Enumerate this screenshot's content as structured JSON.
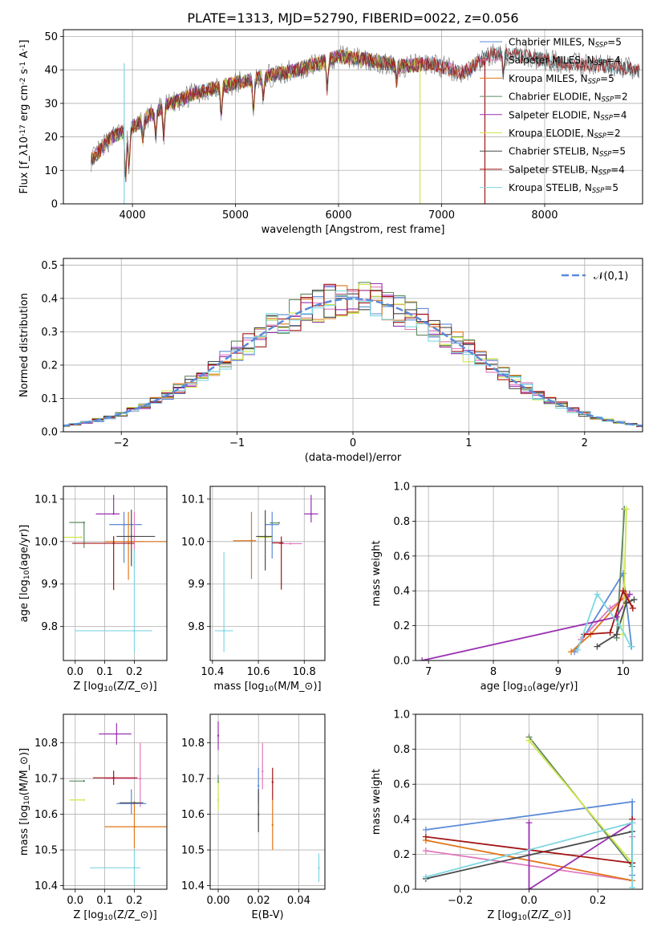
{
  "figure_title": "PLATE=1313, MJD=52790, FIBERID=0022, z=0.056",
  "colors": {
    "Chabrier MILES": "#5b8ad8",
    "Salpeter MILES": "#e079bd",
    "Kroupa MILES": "#e0761b",
    "Chabrier ELODIE": "#5f8a5f",
    "Salpeter ELODIE": "#9a31b0",
    "Kroupa ELODIE": "#cfe64a",
    "Chabrier STELIB": "#4a4a4a",
    "Salpeter STELIB": "#a31515",
    "Kroupa STELIB": "#7fd6e0",
    "data": "#777777",
    "normal": "#5b8ad8"
  },
  "chart_data": [
    {
      "id": "spectrum",
      "type": "line",
      "xlabel": "wavelength [Angstrom, rest frame]",
      "ylabel": "Flux [f$_\\lambda$10$^{-17}$ erg cm$^{-2}$ s$^{-1}$ A$^{-1}$]",
      "xlim": [
        3330,
        8950
      ],
      "ylim": [
        0,
        52
      ],
      "xticks": [
        4000,
        5000,
        6000,
        7000,
        8000
      ],
      "yticks": [
        0,
        10,
        20,
        30,
        40,
        50
      ],
      "legend_position": "right",
      "legend": [
        {
          "label": "Chabrier MILES",
          "nssp": "5"
        },
        {
          "label": "Salpeter MILES",
          "nssp": "4"
        },
        {
          "label": "Kroupa MILES",
          "nssp": "5"
        },
        {
          "label": "Chabrier ELODIE",
          "nssp": "2"
        },
        {
          "label": "Salpeter ELODIE",
          "nssp": "4"
        },
        {
          "label": "Kroupa ELODIE",
          "nssp": "2"
        },
        {
          "label": "Chabrier STELIB",
          "nssp": "5"
        },
        {
          "label": "Salpeter STELIB",
          "nssp": "4"
        },
        {
          "label": "Kroupa STELIB",
          "nssp": "5"
        }
      ],
      "continuum": {
        "x": [
          3600,
          3800,
          4000,
          4300,
          4600,
          5000,
          5300,
          5600,
          6000,
          6300,
          6600,
          6900,
          7200,
          7500,
          7800,
          8200,
          8700,
          8900
        ],
        "y": [
          13,
          20,
          23,
          29,
          33,
          36,
          38,
          40,
          44,
          43,
          41,
          42,
          39,
          45,
          44,
          42,
          41,
          40
        ]
      }
    },
    {
      "id": "residuals",
      "type": "line",
      "xlabel": "(data-model)/error",
      "ylabel": "Normed distribution",
      "xlim": [
        -2.5,
        2.5
      ],
      "ylim": [
        0,
        0.52
      ],
      "xticks": [
        -2,
        -1,
        0,
        1,
        2
      ],
      "yticks": [
        0.0,
        0.1,
        0.2,
        0.3,
        0.4,
        0.5
      ],
      "legend_position": "top-right",
      "legend_label": "$\\mathcal{N}(0,1)$",
      "bin_width": 0.1
    },
    {
      "id": "age-vs-Z",
      "type": "scatter",
      "xlabel": "Z [log$_{10}(Z/Z_\\odot)$]",
      "ylabel": "age  [log$_{10}(age/yr)$]",
      "xlim": [
        -0.04,
        0.31
      ],
      "ylim": [
        9.72,
        10.13
      ],
      "xticks": [
        0.0,
        0.1,
        0.2
      ],
      "yticks": [
        9.8,
        9.9,
        10.0,
        10.1
      ],
      "points": [
        {
          "model": "Chabrier MILES",
          "x": 0.165,
          "y": 10.04,
          "xerr": [
            0.05,
            0.06
          ],
          "yerr": [
            0.09,
            0.03
          ]
        },
        {
          "model": "Salpeter MILES",
          "x": 0.2,
          "y": 10.0,
          "xerr": [
            0.04,
            0.03
          ],
          "yerr": [
            0.06,
            0.07
          ]
        },
        {
          "model": "Kroupa MILES",
          "x": 0.18,
          "y": 10.0,
          "xerr": [
            0.08,
            0.13
          ],
          "yerr": [
            0.09,
            0.07
          ]
        },
        {
          "model": "Chabrier ELODIE",
          "x": 0.03,
          "y": 10.045,
          "xerr": [
            0.05,
            0.0
          ],
          "yerr": [
            0.06,
            0.0
          ]
        },
        {
          "model": "Salpeter ELODIE",
          "x": 0.13,
          "y": 10.065,
          "xerr": [
            0.06,
            0.02
          ],
          "yerr": [
            0.0,
            0.045
          ]
        },
        {
          "model": "Kroupa ELODIE",
          "x": 0.02,
          "y": 10.01,
          "xerr": [
            0.06,
            0.0
          ],
          "yerr": [
            0.0,
            0.0
          ]
        },
        {
          "model": "Chabrier STELIB",
          "x": 0.19,
          "y": 10.012,
          "xerr": [
            0.05,
            0.08
          ],
          "yerr": [
            0.07,
            0.063
          ]
        },
        {
          "model": "Salpeter STELIB",
          "x": 0.13,
          "y": 9.996,
          "xerr": [
            0.14,
            0.07
          ],
          "yerr": [
            0.11,
            0.017
          ]
        },
        {
          "model": "Kroupa STELIB",
          "x": 0.2,
          "y": 9.79,
          "xerr": [
            0.2,
            0.06
          ],
          "yerr": [
            0.05,
            0.19
          ]
        }
      ]
    },
    {
      "id": "age-vs-mass",
      "type": "scatter",
      "xlabel": "mass [log$_{10}(M/M_\\odot)$]",
      "ylabel": "",
      "xlim": [
        10.39,
        10.89
      ],
      "ylim": [
        9.72,
        10.13
      ],
      "xticks": [
        10.4,
        10.6,
        10.8
      ],
      "yticks": [
        9.8,
        9.9,
        10.0,
        10.1
      ],
      "points": [
        {
          "model": "Chabrier MILES",
          "x": 10.66,
          "y": 10.04,
          "xerr": [
            0.03,
            0.03
          ],
          "yerr": [
            0.08,
            0.03
          ]
        },
        {
          "model": "Salpeter MILES",
          "x": 10.74,
          "y": 9.995,
          "xerr": [
            0.05,
            0.05
          ],
          "yerr": [
            0.0,
            0.0
          ]
        },
        {
          "model": "Kroupa MILES",
          "x": 10.57,
          "y": 10.002,
          "xerr": [
            0.08,
            0.02
          ],
          "yerr": [
            0.09,
            0.068
          ]
        },
        {
          "model": "Chabrier ELODIE",
          "x": 10.69,
          "y": 10.044,
          "xerr": [
            0.04,
            0.0
          ],
          "yerr": [
            0.0,
            0.0
          ]
        },
        {
          "model": "Salpeter ELODIE",
          "x": 10.83,
          "y": 10.065,
          "xerr": [
            0.03,
            0.03
          ],
          "yerr": [
            0.02,
            0.045
          ]
        },
        {
          "model": "Kroupa ELODIE",
          "x": 10.64,
          "y": 10.01,
          "xerr": [
            0.04,
            0.02
          ],
          "yerr": [
            0.0,
            0.0
          ]
        },
        {
          "model": "Chabrier STELIB",
          "x": 10.63,
          "y": 10.012,
          "xerr": [
            0.04,
            0.03
          ],
          "yerr": [
            0.08,
            0.062
          ]
        },
        {
          "model": "Salpeter STELIB",
          "x": 10.7,
          "y": 9.997,
          "xerr": [
            0.04,
            0.01
          ],
          "yerr": [
            0.11,
            0.015
          ]
        },
        {
          "model": "Kroupa STELIB",
          "x": 10.45,
          "y": 9.79,
          "xerr": [
            0.04,
            0.04
          ],
          "yerr": [
            0.05,
            0.185
          ]
        }
      ]
    },
    {
      "id": "weight-vs-age",
      "type": "line",
      "xlabel": "age  [log$_{10}(age/yr)$]",
      "ylabel": "mass weight",
      "xlim": [
        6.8,
        10.3
      ],
      "ylim": [
        0.0,
        1.0
      ],
      "xticks": [
        7,
        8,
        9,
        10
      ],
      "yticks": [
        0.0,
        0.2,
        0.4,
        0.6,
        0.8,
        1.0
      ],
      "series": [
        {
          "model": "Chabrier MILES",
          "x": [
            9.25,
            10.0,
            10.13
          ],
          "y": [
            0.05,
            0.5,
            0.08
          ]
        },
        {
          "model": "Salpeter MILES",
          "x": [
            9.35,
            9.8,
            10.1
          ],
          "y": [
            0.12,
            0.3,
            0.38
          ]
        },
        {
          "model": "Kroupa MILES",
          "x": [
            9.2,
            9.5,
            10.05,
            10.15
          ],
          "y": [
            0.05,
            0.15,
            0.38,
            0.3
          ]
        },
        {
          "model": "Chabrier ELODIE",
          "x": [
            9.9,
            10.02
          ],
          "y": [
            0.13,
            0.87
          ]
        },
        {
          "model": "Salpeter ELODIE",
          "x": [
            6.9,
            9.9,
            10.1
          ],
          "y": [
            0.0,
            0.25,
            0.38
          ]
        },
        {
          "model": "Kroupa ELODIE",
          "x": [
            10.0,
            10.05
          ],
          "y": [
            0.15,
            0.87
          ]
        },
        {
          "model": "Chabrier STELIB",
          "x": [
            9.6,
            9.9,
            10.05,
            10.17
          ],
          "y": [
            0.08,
            0.15,
            0.33,
            0.35
          ]
        },
        {
          "model": "Salpeter STELIB",
          "x": [
            9.4,
            9.8,
            10.0,
            10.15
          ],
          "y": [
            0.15,
            0.16,
            0.4,
            0.3
          ]
        },
        {
          "model": "Kroupa STELIB",
          "x": [
            9.3,
            9.6,
            9.95,
            10.12
          ],
          "y": [
            0.06,
            0.38,
            0.2,
            0.08
          ]
        }
      ]
    },
    {
      "id": "mass-vs-Z",
      "type": "scatter",
      "xlabel": "Z [log$_{10}(Z/Z_\\odot)$]",
      "ylabel": "mass [log$_{10}(M/M_\\odot)$]",
      "xlim": [
        -0.04,
        0.31
      ],
      "ylim": [
        10.39,
        10.88
      ],
      "xticks": [
        0.0,
        0.1,
        0.2
      ],
      "yticks": [
        10.4,
        10.5,
        10.6,
        10.7,
        10.8
      ],
      "points": [
        {
          "model": "Chabrier MILES",
          "x": 0.19,
          "y": 10.63,
          "xerr": [
            0.05,
            0.05
          ],
          "yerr": [
            0.03,
            0.04
          ]
        },
        {
          "model": "Salpeter MILES",
          "x": 0.22,
          "y": 10.7,
          "xerr": [
            0.12,
            0.0
          ],
          "yerr": [
            0.08,
            0.1
          ]
        },
        {
          "model": "Kroupa MILES",
          "x": 0.2,
          "y": 10.565,
          "xerr": [
            0.1,
            0.11
          ],
          "yerr": [
            0.06,
            0.07
          ]
        },
        {
          "model": "Chabrier ELODIE",
          "x": 0.03,
          "y": 10.693,
          "xerr": [
            0.05,
            0.0
          ],
          "yerr": [
            0.0,
            0.0
          ]
        },
        {
          "model": "Salpeter ELODIE",
          "x": 0.14,
          "y": 10.825,
          "xerr": [
            0.06,
            0.05
          ],
          "yerr": [
            0.03,
            0.03
          ]
        },
        {
          "model": "Kroupa ELODIE",
          "x": 0.03,
          "y": 10.64,
          "xerr": [
            0.05,
            0.0
          ],
          "yerr": [
            0.0,
            0.0
          ]
        },
        {
          "model": "Chabrier STELIB",
          "x": 0.2,
          "y": 10.632,
          "xerr": [
            0.05,
            0.03
          ],
          "yerr": [
            0.0,
            0.0
          ]
        },
        {
          "model": "Salpeter STELIB",
          "x": 0.13,
          "y": 10.702,
          "xerr": [
            0.07,
            0.08
          ],
          "yerr": [
            0.02,
            0.02
          ]
        },
        {
          "model": "Kroupa STELIB",
          "x": 0.2,
          "y": 10.45,
          "xerr": [
            0.15,
            0.02
          ],
          "yerr": [
            0.05,
            0.05
          ]
        }
      ]
    },
    {
      "id": "mass-vs-EBV",
      "type": "scatter",
      "xlabel": "E(B-V)",
      "ylabel": "",
      "xlim": [
        -0.004,
        0.053
      ],
      "ylim": [
        10.39,
        10.88
      ],
      "xticks": [
        0.0,
        0.02,
        0.04
      ],
      "yticks": [
        10.4,
        10.5,
        10.6,
        10.7,
        10.8
      ],
      "points": [
        {
          "model": "Chabrier MILES",
          "x": 0.02,
          "y": 10.68,
          "xerr": [
            0.0,
            0.0
          ],
          "yerr": [
            0.05,
            0.05
          ]
        },
        {
          "model": "Salpeter MILES",
          "x": 0.022,
          "y": 10.72,
          "xerr": [
            0.0,
            0.0
          ],
          "yerr": [
            0.05,
            0.08
          ]
        },
        {
          "model": "Kroupa MILES",
          "x": 0.027,
          "y": 10.57,
          "xerr": [
            0.0,
            0.0
          ],
          "yerr": [
            0.07,
            0.07
          ]
        },
        {
          "model": "Chabrier ELODIE",
          "x": 0.0,
          "y": 10.69,
          "xerr": [
            0.0,
            0.0
          ],
          "yerr": [
            0.0,
            0.02
          ]
        },
        {
          "model": "Salpeter ELODIE",
          "x": 0.0,
          "y": 10.82,
          "xerr": [
            0.0,
            0.0
          ],
          "yerr": [
            0.04,
            0.04
          ]
        },
        {
          "model": "Kroupa ELODIE",
          "x": 0.0,
          "y": 10.64,
          "xerr": [
            0.0,
            0.0
          ],
          "yerr": [
            0.03,
            0.05
          ]
        },
        {
          "model": "Chabrier STELIB",
          "x": 0.02,
          "y": 10.6,
          "xerr": [
            0.0,
            0.0
          ],
          "yerr": [
            0.05,
            0.07
          ]
        },
        {
          "model": "Salpeter STELIB",
          "x": 0.027,
          "y": 10.69,
          "xerr": [
            0.0,
            0.0
          ],
          "yerr": [
            0.05,
            0.04
          ]
        },
        {
          "model": "Kroupa STELIB",
          "x": 0.05,
          "y": 10.45,
          "xerr": [
            0.0,
            0.0
          ],
          "yerr": [
            0.04,
            0.04
          ]
        }
      ]
    },
    {
      "id": "weight-vs-Z",
      "type": "line",
      "xlabel": "Z [log$_{10}(Z/Z_\\odot)$]",
      "ylabel": "mass weight",
      "xlim": [
        -0.33,
        0.33
      ],
      "ylim": [
        0.0,
        1.0
      ],
      "xticks": [
        -0.2,
        0.0,
        0.2
      ],
      "yticks": [
        0.0,
        0.2,
        0.4,
        0.6,
        0.8,
        1.0
      ],
      "series": [
        {
          "model": "Chabrier MILES",
          "x": [
            -0.3,
            0.3,
            0.3
          ],
          "y": [
            0.34,
            0.5,
            0.08
          ]
        },
        {
          "model": "Salpeter MILES",
          "x": [
            -0.3,
            0.3,
            0.3
          ],
          "y": [
            0.22,
            0.05,
            0.3
          ]
        },
        {
          "model": "Kroupa MILES",
          "x": [
            -0.3,
            0.3,
            0.3
          ],
          "y": [
            0.28,
            0.05,
            0.38
          ]
        },
        {
          "model": "Chabrier ELODIE",
          "x": [
            0.0,
            0.3
          ],
          "y": [
            0.87,
            0.13
          ]
        },
        {
          "model": "Salpeter ELODIE",
          "x": [
            0.0,
            0.0,
            0.3
          ],
          "y": [
            0.38,
            0.0,
            0.38
          ]
        },
        {
          "model": "Kroupa ELODIE",
          "x": [
            0.0,
            0.3
          ],
          "y": [
            0.85,
            0.15
          ]
        },
        {
          "model": "Chabrier STELIB",
          "x": [
            -0.3,
            0.3,
            0.3
          ],
          "y": [
            0.06,
            0.33,
            0.15
          ]
        },
        {
          "model": "Salpeter STELIB",
          "x": [
            -0.3,
            0.3,
            0.3
          ],
          "y": [
            0.3,
            0.15,
            0.4
          ]
        },
        {
          "model": "Kroupa STELIB",
          "x": [
            -0.3,
            0.3,
            0.3
          ],
          "y": [
            0.07,
            0.38,
            0.01
          ]
        }
      ]
    }
  ]
}
